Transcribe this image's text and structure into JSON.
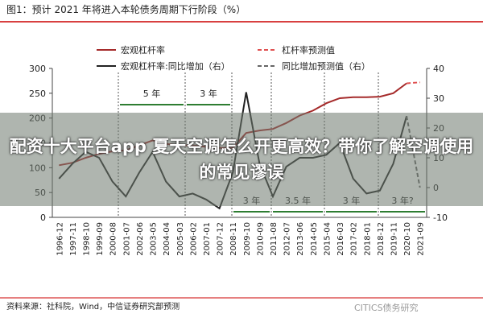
{
  "chart_data": {
    "type": "line",
    "title": "图1：预计 2021 年将进入本轮债务周期下行阶段（%）",
    "categories": [
      "1996-12",
      "1997-11",
      "1998-10",
      "1999-09",
      "2000-08",
      "2001-07",
      "2002-06",
      "2003-05",
      "2004-04",
      "2005-03",
      "2006-02",
      "2007-01",
      "2007-12",
      "2008-11",
      "2009-10",
      "2010-09",
      "2011-08",
      "2012-07",
      "2013-06",
      "2014-05",
      "2015-04",
      "2016-03",
      "2017-02",
      "2018-01",
      "2018-12",
      "2019-11",
      "2020-10",
      "2021-09"
    ],
    "series": [
      {
        "name": "宏观杠杆率",
        "color": "#a52a2a",
        "dash": false,
        "values": [
          105,
          110,
          120,
          128,
          133,
          135,
          145,
          155,
          148,
          145,
          145,
          142,
          140,
          140,
          170,
          175,
          178,
          190,
          205,
          215,
          230,
          240,
          242,
          242,
          243,
          250,
          270,
          null
        ]
      },
      {
        "name": "杠杆率预测值",
        "color": "#e05050",
        "dash": true,
        "values": [
          null,
          null,
          null,
          null,
          null,
          null,
          null,
          null,
          null,
          null,
          null,
          null,
          null,
          null,
          null,
          null,
          null,
          null,
          null,
          null,
          null,
          null,
          null,
          null,
          null,
          null,
          270,
          272
        ]
      },
      {
        "name": "宏观杠杆率:同比增加（右）",
        "color": "#222222",
        "dash": false,
        "axis": "y2",
        "values": [
          3,
          8,
          12,
          10,
          2,
          -3,
          5,
          12,
          2,
          -3,
          -2,
          -4,
          -7,
          5,
          32,
          8,
          -3,
          7,
          10,
          10,
          11,
          15,
          3,
          -2,
          -1,
          8,
          24,
          null
        ]
      },
      {
        "name": "同比增加预测值（右）",
        "color": "#666666",
        "dash": true,
        "axis": "y2",
        "values": [
          null,
          null,
          null,
          null,
          null,
          null,
          null,
          null,
          null,
          null,
          null,
          null,
          null,
          null,
          null,
          null,
          null,
          null,
          null,
          null,
          null,
          null,
          null,
          null,
          null,
          null,
          24,
          0
        ]
      }
    ],
    "ylim": [
      0,
      300
    ],
    "yticks": [
      0,
      50,
      100,
      150,
      200,
      250,
      300
    ],
    "y2lim": [
      -10,
      40
    ],
    "y2ticks": [
      -10,
      0,
      10,
      20,
      30,
      40
    ],
    "annotations": [
      "5 年",
      "3 年",
      "3 年",
      "3.5 年",
      "3 年",
      "3 年?"
    ],
    "source": "资料来源：社科院，Wind，中信证券研究部预测",
    "watermark": "CITICS债务研究"
  },
  "banner": "配资十大平台app 夏天空调怎么开更高效？带你了解空调使用的常见谬误"
}
